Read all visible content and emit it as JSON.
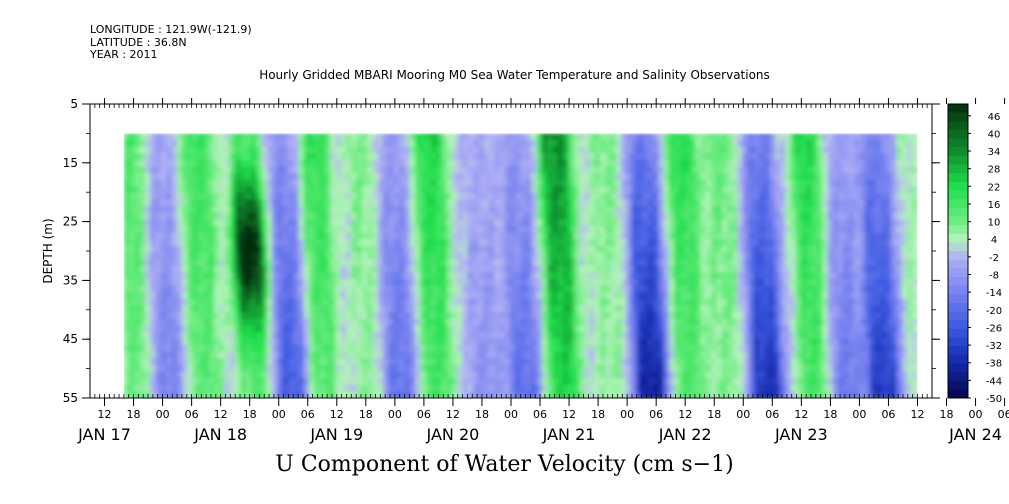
{
  "header": {
    "longitude": "LONGITUDE : 121.9W(-121.9)",
    "latitude": "LATITUDE : 36.8N",
    "year": "YEAR : 2011"
  },
  "chart_data": {
    "type": "heatmap",
    "title": "Hourly Gridded MBARI Mooring M0 Sea Water Temperature and Salinity Observations",
    "caption": "U Component of Water Velocity (cm s−1)",
    "ylabel": "DEPTH (m)",
    "ylim": [
      55,
      5
    ],
    "y_ticks": [
      "5",
      "15",
      "25",
      "35",
      "45",
      "55"
    ],
    "x_hour_ticks": [
      "12",
      "18",
      "00",
      "06",
      "12",
      "18",
      "00",
      "06",
      "12",
      "18",
      "00",
      "06",
      "12",
      "18",
      "00",
      "06",
      "12",
      "18",
      "00",
      "06",
      "12",
      "18",
      "00",
      "06",
      "12",
      "18",
      "00",
      "06",
      "12",
      "18",
      "00",
      "06"
    ],
    "x_day_labels": [
      "JAN 17",
      "JAN 18",
      "JAN 19",
      "JAN 20",
      "JAN 21",
      "JAN 22",
      "JAN 23",
      "JAN 24"
    ],
    "x_range": [
      "2011-01-17 09:00",
      "2011-01-24 15:00"
    ],
    "data_x_range": [
      "2011-01-17 16:00",
      "2011-01-24 12:00"
    ],
    "data_depth_range": [
      10,
      55
    ],
    "colorbar_levels": [
      "46",
      "40",
      "34",
      "28",
      "22",
      "16",
      "10",
      "4",
      "-2",
      "-8",
      "-14",
      "-20",
      "-26",
      "-32",
      "-38",
      "-44",
      "-50"
    ],
    "colorbar_range": [
      -50,
      50
    ],
    "colors": {
      "strong_positive": "#0a4d14",
      "positive": "#1fe04a",
      "weak_positive": "#9ef3a6",
      "weak_negative": "#a9a9f3",
      "negative": "#4a69e8",
      "strong_negative": "#06064e"
    },
    "bands": [
      {
        "time": "2011-01-17 18:00",
        "sign": "positive",
        "peak_cm_s": 14
      },
      {
        "time": "2011-01-18 00:00",
        "sign": "negative",
        "peak_cm_s": -12
      },
      {
        "time": "2011-01-18 08:00",
        "sign": "positive",
        "peak_cm_s": 16
      },
      {
        "time": "2011-01-18 18:00",
        "sign": "positive",
        "peak_cm_s": 46
      },
      {
        "time": "2011-01-19 02:00",
        "sign": "negative",
        "peak_cm_s": -22
      },
      {
        "time": "2011-01-19 08:00",
        "sign": "positive",
        "peak_cm_s": 18
      },
      {
        "time": "2011-01-19 18:00",
        "sign": "mixed",
        "peak_cm_s": 8
      },
      {
        "time": "2011-01-20 00:00",
        "sign": "negative",
        "peak_cm_s": -16
      },
      {
        "time": "2011-01-20 08:00",
        "sign": "positive",
        "peak_cm_s": 20
      },
      {
        "time": "2011-01-20 18:00",
        "sign": "mixed",
        "peak_cm_s": -8
      },
      {
        "time": "2011-01-21 02:00",
        "sign": "negative",
        "peak_cm_s": -16
      },
      {
        "time": "2011-01-21 10:00",
        "sign": "positive",
        "peak_cm_s": 30
      },
      {
        "time": "2011-01-21 20:00",
        "sign": "mixed",
        "peak_cm_s": 8
      },
      {
        "time": "2011-01-22 04:00",
        "sign": "negative",
        "peak_cm_s": -34
      },
      {
        "time": "2011-01-22 12:00",
        "sign": "positive",
        "peak_cm_s": 18
      },
      {
        "time": "2011-01-22 20:00",
        "sign": "positive",
        "peak_cm_s": 10
      },
      {
        "time": "2011-01-23 04:00",
        "sign": "negative",
        "peak_cm_s": -30
      },
      {
        "time": "2011-01-23 14:00",
        "sign": "positive",
        "peak_cm_s": 20
      },
      {
        "time": "2011-01-23 20:00",
        "sign": "negative",
        "peak_cm_s": -14
      },
      {
        "time": "2011-01-24 04:00",
        "sign": "negative",
        "peak_cm_s": -28
      }
    ]
  }
}
